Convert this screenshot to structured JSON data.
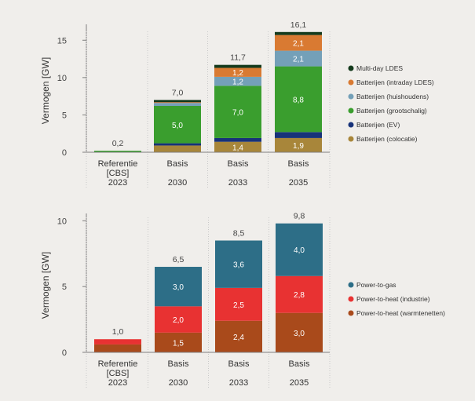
{
  "colors": {
    "bg": "#f0eeeb",
    "axis": "#7f7f7f",
    "grid": "#c8c8c8",
    "total_label": "#444444",
    "segment_label": "#ffffff"
  },
  "chart_data": [
    {
      "type": "bar",
      "stacked": true,
      "ylabel": "Vermogen [GW]",
      "ylim": [
        0,
        16.5
      ],
      "yticks": [
        0,
        5,
        10,
        15
      ],
      "grid": false,
      "legend_position": "right",
      "categories": [
        {
          "lines": [
            "Referentie",
            "[CBS]",
            "2023"
          ]
        },
        {
          "lines": [
            "Basis",
            "",
            "2030"
          ]
        },
        {
          "lines": [
            "Basis",
            "",
            "2033"
          ]
        },
        {
          "lines": [
            "Basis",
            "",
            "2035"
          ]
        }
      ],
      "totals": [
        "0,2",
        "7,0",
        "11,7",
        "16,1"
      ],
      "series": [
        {
          "name": "Batterijen (colocatie)",
          "color": "#a8863a",
          "values": [
            0,
            0.9,
            1.4,
            1.9
          ],
          "labels": [
            "",
            "",
            "1,4",
            "1,9"
          ]
        },
        {
          "name": "Batterijen (EV)",
          "color": "#173279",
          "values": [
            0,
            0.3,
            0.5,
            0.8
          ],
          "labels": [
            "",
            "",
            "",
            ""
          ]
        },
        {
          "name": "Batterijen (grootschalig)",
          "color": "#3a9e2e",
          "values": [
            0.2,
            5.0,
            7.0,
            8.8
          ],
          "labels": [
            "",
            "5,0",
            "7,0",
            "8,8"
          ]
        },
        {
          "name": "Batterijen (huishoudens)",
          "color": "#74a0b8",
          "values": [
            0,
            0.4,
            1.2,
            2.1
          ],
          "labels": [
            "",
            "",
            "1,2",
            "2,1"
          ]
        },
        {
          "name": "Batterijen (intraday LDES)",
          "color": "#d97a32",
          "values": [
            0,
            0.1,
            1.2,
            2.1
          ],
          "labels": [
            "",
            "",
            "1,2",
            "2,1"
          ]
        },
        {
          "name": "Multi-day LDES",
          "color": "#133a1c",
          "values": [
            0,
            0.3,
            0.4,
            0.4
          ],
          "labels": [
            "",
            "",
            "",
            ""
          ]
        }
      ]
    },
    {
      "type": "bar",
      "stacked": true,
      "ylabel": "Vermogen [GW]",
      "ylim": [
        0,
        10.2
      ],
      "yticks": [
        0,
        5,
        10
      ],
      "grid": false,
      "legend_position": "right",
      "categories": [
        {
          "lines": [
            "Referentie",
            "[CBS]",
            "2023"
          ]
        },
        {
          "lines": [
            "Basis",
            "",
            "2030"
          ]
        },
        {
          "lines": [
            "Basis",
            "",
            "2033"
          ]
        },
        {
          "lines": [
            "Basis",
            "",
            "2035"
          ]
        }
      ],
      "totals": [
        "1,0",
        "6,5",
        "8,5",
        "9,8"
      ],
      "series": [
        {
          "name": "Power-to-heat (warmtenetten)",
          "color": "#a94a1b",
          "values": [
            0.6,
            1.5,
            2.4,
            3.0
          ],
          "labels": [
            "",
            "1,5",
            "2,4",
            "3,0"
          ]
        },
        {
          "name": "Power-to-heat (industrie)",
          "color": "#e83232",
          "values": [
            0.4,
            2.0,
            2.5,
            2.8
          ],
          "labels": [
            "",
            "2,0",
            "2,5",
            "2,8"
          ]
        },
        {
          "name": "Power-to-gas",
          "color": "#2d6e87",
          "values": [
            0,
            3.0,
            3.6,
            4.0
          ],
          "labels": [
            "",
            "3,0",
            "3,6",
            "4,0"
          ]
        }
      ]
    }
  ]
}
